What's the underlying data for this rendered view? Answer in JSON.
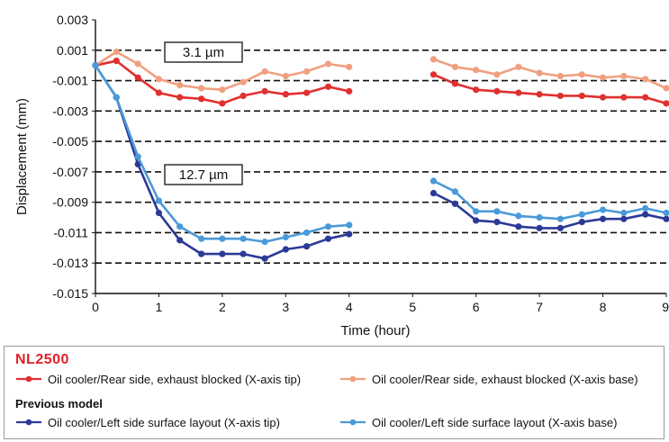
{
  "chart_data": {
    "type": "line",
    "xlabel": "Time (hour)",
    "ylabel": "Displacement (mm)",
    "xlim": [
      0,
      9
    ],
    "ylim": [
      -0.015,
      0.003
    ],
    "xticks": [
      "0",
      "1",
      "2",
      "3",
      "4",
      "5",
      "6",
      "7",
      "8",
      "9"
    ],
    "yticks": [
      "0.003",
      "0.001",
      "-0.001",
      "-0.003",
      "-0.005",
      "-0.007",
      "-0.009",
      "-0.011",
      "-0.013",
      "-0.015"
    ],
    "grid": "horizontal dashed",
    "annotations": [
      "3.1 µm",
      "12.7 µm"
    ],
    "series": [
      {
        "name": "Oil cooler/Rear side, exhaust blocked (X-axis tip)",
        "color": "#e0302f",
        "segments": [
          [
            [
              0,
              0
            ],
            [
              0.33,
              0.0003
            ],
            [
              0.67,
              -0.0008
            ],
            [
              1,
              -0.0018
            ],
            [
              1.33,
              -0.0021
            ],
            [
              1.67,
              -0.0022
            ],
            [
              2,
              -0.0025
            ],
            [
              2.33,
              -0.002
            ],
            [
              2.67,
              -0.0017
            ],
            [
              3,
              -0.0019
            ],
            [
              3.33,
              -0.0018
            ],
            [
              3.67,
              -0.0014
            ],
            [
              4,
              -0.0017
            ]
          ],
          [
            [
              5.33,
              -0.0006
            ],
            [
              5.67,
              -0.0012
            ],
            [
              6,
              -0.0016
            ],
            [
              6.33,
              -0.0017
            ],
            [
              6.67,
              -0.0018
            ],
            [
              7,
              -0.0019
            ],
            [
              7.33,
              -0.002
            ],
            [
              7.67,
              -0.002
            ],
            [
              8,
              -0.0021
            ],
            [
              8.33,
              -0.0021
            ],
            [
              8.67,
              -0.0021
            ],
            [
              9,
              -0.0025
            ]
          ]
        ]
      },
      {
        "name": "Oil cooler/Rear side, exhaust blocked (X-axis base)",
        "color": "#f0a080",
        "segments": [
          [
            [
              0,
              0
            ],
            [
              0.33,
              0.0009
            ],
            [
              0.67,
              0.0001
            ],
            [
              1,
              -0.0009
            ],
            [
              1.33,
              -0.0013
            ],
            [
              1.67,
              -0.0015
            ],
            [
              2,
              -0.0016
            ],
            [
              2.33,
              -0.0011
            ],
            [
              2.67,
              -0.0004
            ],
            [
              3,
              -0.0007
            ],
            [
              3.33,
              -0.0004
            ],
            [
              3.67,
              0.0001
            ],
            [
              4,
              -0.0001
            ]
          ],
          [
            [
              5.33,
              0.0004
            ],
            [
              5.67,
              -0.0001
            ],
            [
              6,
              -0.0003
            ],
            [
              6.33,
              -0.0006
            ],
            [
              6.67,
              -0.0001
            ],
            [
              7,
              -0.0005
            ],
            [
              7.33,
              -0.0007
            ],
            [
              7.67,
              -0.0006
            ],
            [
              8,
              -0.0008
            ],
            [
              8.33,
              -0.0007
            ],
            [
              8.67,
              -0.0009
            ],
            [
              9,
              -0.0015
            ]
          ]
        ]
      },
      {
        "name": "Oil cooler/Left side surface layout (X-axis tip)",
        "color": "#2c3a96",
        "segments": [
          [
            [
              0,
              0
            ],
            [
              0.33,
              -0.0021
            ],
            [
              0.67,
              -0.0065
            ],
            [
              1,
              -0.0097
            ],
            [
              1.33,
              -0.0115
            ],
            [
              1.67,
              -0.0124
            ],
            [
              2,
              -0.0124
            ],
            [
              2.33,
              -0.0124
            ],
            [
              2.67,
              -0.0127
            ],
            [
              3,
              -0.0121
            ],
            [
              3.33,
              -0.0119
            ],
            [
              3.67,
              -0.0114
            ],
            [
              4,
              -0.0111
            ]
          ],
          [
            [
              5.33,
              -0.0084
            ],
            [
              5.67,
              -0.0091
            ],
            [
              6,
              -0.0102
            ],
            [
              6.33,
              -0.0103
            ],
            [
              6.67,
              -0.0106
            ],
            [
              7,
              -0.0107
            ],
            [
              7.33,
              -0.0107
            ],
            [
              7.67,
              -0.0103
            ],
            [
              8,
              -0.0101
            ],
            [
              8.33,
              -0.0101
            ],
            [
              8.67,
              -0.0098
            ],
            [
              9,
              -0.0101
            ]
          ]
        ]
      },
      {
        "name": "Oil cooler/Left side surface layout (X-axis base)",
        "color": "#4a9ad8",
        "segments": [
          [
            [
              0,
              0
            ],
            [
              0.33,
              -0.0021
            ],
            [
              0.67,
              -0.006
            ],
            [
              1,
              -0.0089
            ],
            [
              1.33,
              -0.0106
            ],
            [
              1.67,
              -0.0114
            ],
            [
              2,
              -0.0114
            ],
            [
              2.33,
              -0.0114
            ],
            [
              2.67,
              -0.0116
            ],
            [
              3,
              -0.0113
            ],
            [
              3.33,
              -0.011
            ],
            [
              3.67,
              -0.0106
            ],
            [
              4,
              -0.0105
            ]
          ],
          [
            [
              5.33,
              -0.0076
            ],
            [
              5.67,
              -0.0083
            ],
            [
              6,
              -0.0096
            ],
            [
              6.33,
              -0.0096
            ],
            [
              6.67,
              -0.0099
            ],
            [
              7,
              -0.01
            ],
            [
              7.33,
              -0.0101
            ],
            [
              7.67,
              -0.0098
            ],
            [
              8,
              -0.0095
            ],
            [
              8.33,
              -0.0097
            ],
            [
              8.67,
              -0.0094
            ],
            [
              9,
              -0.0097
            ]
          ]
        ]
      }
    ]
  },
  "legend": {
    "group1_title": "NL2500",
    "group2_title": "Previous model",
    "items": [
      "Oil cooler/Rear side, exhaust blocked (X-axis tip)",
      "Oil cooler/Rear side, exhaust blocked (X-axis base)",
      "Oil cooler/Left side surface layout (X-axis tip)",
      "Oil cooler/Left side surface layout (X-axis base)"
    ]
  }
}
